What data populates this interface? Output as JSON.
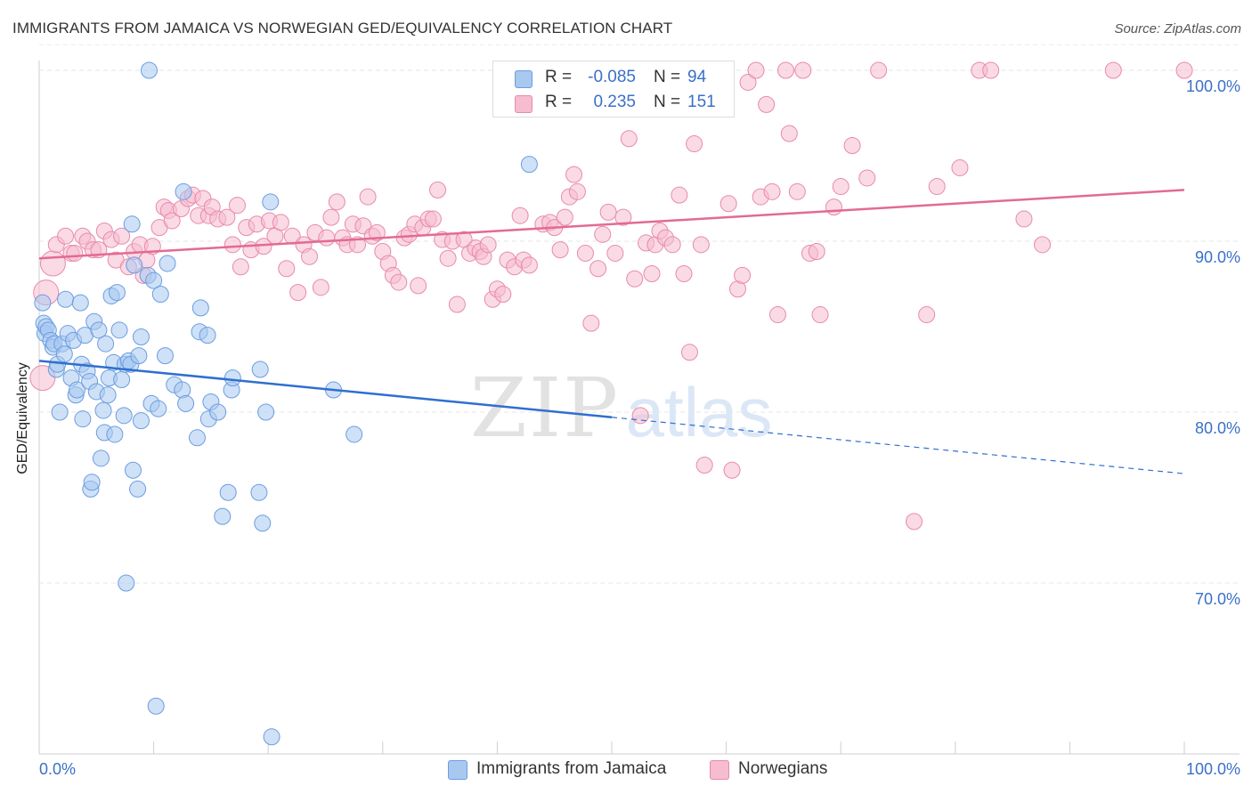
{
  "header": {
    "title": "IMMIGRANTS FROM JAMAICA VS NORWEGIAN GED/EQUIVALENCY CORRELATION CHART",
    "source": "Source: ZipAtlas.com"
  },
  "legend": {
    "rows": [
      {
        "r_label": "R =",
        "r_value": "-0.085",
        "n_label": "N =",
        "n_value": "94"
      },
      {
        "r_label": "R =",
        "r_value": "0.235",
        "n_label": "N =",
        "n_value": "151"
      }
    ],
    "bottom": [
      {
        "label": "Immigrants from Jamaica"
      },
      {
        "label": "Norwegians"
      }
    ]
  },
  "watermark": {
    "zip": "ZIP",
    "atlas": "atlas"
  },
  "chart_data": {
    "type": "scatter",
    "title": "IMMIGRANTS FROM JAMAICA VS NORWEGIAN GED/EQUIVALENCY CORRELATION CHART",
    "xlabel": "",
    "ylabel": "GED/Equivalency",
    "xlim": [
      0,
      100
    ],
    "ylim": [
      60,
      101.5
    ],
    "x_tick_labels": [
      "0.0%",
      "100.0%"
    ],
    "y_ticks": [
      70,
      80,
      90,
      100
    ],
    "y_tick_labels": [
      "70.0%",
      "80.0%",
      "90.0%",
      "100.0%"
    ],
    "grid": true,
    "legend_position": "top-center",
    "colors": {
      "jamaica_fill": "#a8c8f0",
      "jamaica_stroke": "#6b9de0",
      "jamaica_line": "#2f6fcf",
      "norwegian_fill": "#f6bcd0",
      "norwegian_stroke": "#e88aac",
      "norwegian_line": "#e36a95",
      "tick": "#3a70c8"
    },
    "series": [
      {
        "name": "Immigrants from Jamaica",
        "trend": {
          "x0": 0,
          "y0": 83.0,
          "x1": 50,
          "y1": 79.7,
          "dash_x1": 100,
          "dash_y1": 76.4
        },
        "points": [
          [
            0.3,
            86.4
          ],
          [
            0.4,
            85.2
          ],
          [
            0.5,
            84.6
          ],
          [
            0.6,
            85.0
          ],
          [
            0.8,
            84.8
          ],
          [
            1.0,
            84.2
          ],
          [
            1.2,
            83.8
          ],
          [
            1.3,
            84.0
          ],
          [
            1.5,
            82.5
          ],
          [
            1.6,
            82.8
          ],
          [
            1.8,
            80.0
          ],
          [
            2.0,
            84.0
          ],
          [
            2.2,
            83.4
          ],
          [
            2.3,
            86.6
          ],
          [
            2.5,
            84.6
          ],
          [
            2.8,
            82.0
          ],
          [
            3.0,
            84.2
          ],
          [
            3.2,
            81.0
          ],
          [
            3.3,
            81.3
          ],
          [
            3.6,
            86.4
          ],
          [
            3.7,
            82.8
          ],
          [
            3.8,
            79.6
          ],
          [
            4.0,
            84.5
          ],
          [
            4.2,
            82.4
          ],
          [
            4.4,
            81.8
          ],
          [
            4.5,
            75.5
          ],
          [
            4.6,
            75.9
          ],
          [
            4.8,
            85.3
          ],
          [
            5.0,
            81.2
          ],
          [
            5.2,
            84.8
          ],
          [
            5.4,
            77.3
          ],
          [
            5.6,
            80.1
          ],
          [
            5.7,
            78.8
          ],
          [
            5.8,
            84.0
          ],
          [
            6.0,
            81.0
          ],
          [
            6.1,
            82.0
          ],
          [
            6.3,
            86.8
          ],
          [
            6.5,
            82.9
          ],
          [
            6.6,
            78.7
          ],
          [
            6.8,
            87.0
          ],
          [
            7.0,
            84.8
          ],
          [
            7.2,
            81.9
          ],
          [
            7.4,
            79.8
          ],
          [
            7.5,
            82.8
          ],
          [
            7.6,
            70.0
          ],
          [
            7.8,
            83.0
          ],
          [
            8.0,
            82.8
          ],
          [
            8.1,
            91.0
          ],
          [
            8.2,
            76.6
          ],
          [
            8.3,
            88.6
          ],
          [
            8.6,
            75.5
          ],
          [
            8.7,
            83.3
          ],
          [
            8.9,
            79.5
          ],
          [
            8.9,
            84.4
          ],
          [
            9.5,
            88.0
          ],
          [
            9.6,
            100.0
          ],
          [
            9.8,
            80.5
          ],
          [
            10.0,
            87.7
          ],
          [
            10.2,
            62.8
          ],
          [
            10.4,
            80.2
          ],
          [
            10.6,
            86.9
          ],
          [
            11.0,
            83.3
          ],
          [
            11.2,
            88.7
          ],
          [
            11.8,
            81.6
          ],
          [
            12.5,
            81.3
          ],
          [
            12.6,
            92.9
          ],
          [
            12.8,
            80.5
          ],
          [
            13.8,
            78.5
          ],
          [
            14.0,
            84.7
          ],
          [
            14.1,
            86.1
          ],
          [
            14.7,
            84.5
          ],
          [
            14.8,
            79.6
          ],
          [
            15.0,
            80.6
          ],
          [
            15.6,
            80.0
          ],
          [
            16.0,
            73.9
          ],
          [
            16.5,
            75.3
          ],
          [
            16.8,
            81.3
          ],
          [
            16.9,
            82.0
          ],
          [
            19.2,
            75.3
          ],
          [
            19.3,
            82.5
          ],
          [
            19.5,
            73.5
          ],
          [
            19.8,
            80.0
          ],
          [
            20.2,
            92.3
          ],
          [
            20.3,
            61.0
          ],
          [
            25.7,
            81.3
          ],
          [
            27.5,
            78.7
          ],
          [
            42.8,
            94.5
          ]
        ]
      },
      {
        "name": "Norwegians",
        "trend": {
          "x0": 0,
          "y0": 89.0,
          "x1": 100,
          "y1": 93.0
        },
        "points": [
          [
            0.3,
            82.0
          ],
          [
            0.6,
            87.0
          ],
          [
            1.2,
            88.7
          ],
          [
            1.5,
            89.8
          ],
          [
            2.3,
            90.3
          ],
          [
            2.8,
            89.3
          ],
          [
            3.1,
            89.3
          ],
          [
            3.8,
            90.3
          ],
          [
            4.2,
            90.0
          ],
          [
            4.7,
            89.5
          ],
          [
            5.2,
            89.5
          ],
          [
            5.7,
            90.6
          ],
          [
            6.3,
            90.1
          ],
          [
            6.7,
            88.9
          ],
          [
            7.2,
            90.3
          ],
          [
            7.8,
            88.5
          ],
          [
            8.3,
            89.4
          ],
          [
            8.8,
            89.8
          ],
          [
            9.1,
            88.0
          ],
          [
            9.4,
            88.9
          ],
          [
            9.9,
            89.7
          ],
          [
            10.5,
            90.8
          ],
          [
            10.9,
            92.0
          ],
          [
            11.3,
            91.8
          ],
          [
            11.6,
            91.2
          ],
          [
            12.4,
            91.9
          ],
          [
            13.0,
            92.5
          ],
          [
            13.4,
            92.7
          ],
          [
            13.9,
            91.5
          ],
          [
            14.3,
            92.5
          ],
          [
            14.8,
            91.5
          ],
          [
            15.1,
            92.0
          ],
          [
            15.6,
            91.3
          ],
          [
            16.4,
            91.4
          ],
          [
            16.9,
            89.8
          ],
          [
            17.3,
            92.1
          ],
          [
            17.6,
            88.5
          ],
          [
            18.1,
            90.8
          ],
          [
            18.5,
            89.5
          ],
          [
            19.0,
            91.0
          ],
          [
            19.6,
            89.7
          ],
          [
            20.1,
            91.2
          ],
          [
            20.6,
            90.3
          ],
          [
            21.1,
            91.1
          ],
          [
            21.6,
            88.4
          ],
          [
            22.1,
            90.3
          ],
          [
            22.6,
            87.0
          ],
          [
            23.1,
            89.8
          ],
          [
            23.6,
            89.1
          ],
          [
            24.1,
            90.5
          ],
          [
            24.6,
            87.3
          ],
          [
            25.1,
            90.2
          ],
          [
            25.5,
            91.4
          ],
          [
            26.0,
            92.3
          ],
          [
            26.5,
            90.2
          ],
          [
            26.9,
            89.8
          ],
          [
            27.4,
            91.0
          ],
          [
            27.8,
            89.8
          ],
          [
            28.3,
            90.9
          ],
          [
            28.7,
            92.6
          ],
          [
            29.1,
            90.3
          ],
          [
            29.5,
            90.5
          ],
          [
            30.0,
            89.4
          ],
          [
            30.5,
            88.7
          ],
          [
            30.9,
            88.0
          ],
          [
            31.4,
            87.6
          ],
          [
            31.9,
            90.2
          ],
          [
            32.3,
            90.4
          ],
          [
            32.8,
            91.0
          ],
          [
            33.1,
            87.4
          ],
          [
            33.5,
            90.8
          ],
          [
            34.0,
            91.3
          ],
          [
            34.4,
            91.3
          ],
          [
            34.8,
            93.0
          ],
          [
            35.2,
            90.1
          ],
          [
            35.7,
            89.0
          ],
          [
            36.1,
            90.0
          ],
          [
            36.5,
            86.3
          ],
          [
            37.1,
            90.1
          ],
          [
            37.6,
            89.3
          ],
          [
            38.1,
            89.6
          ],
          [
            38.5,
            89.4
          ],
          [
            38.8,
            89.1
          ],
          [
            39.2,
            89.8
          ],
          [
            39.6,
            86.6
          ],
          [
            40.0,
            87.2
          ],
          [
            40.5,
            86.9
          ],
          [
            40.9,
            88.9
          ],
          [
            41.5,
            88.5
          ],
          [
            42.0,
            91.5
          ],
          [
            42.3,
            88.9
          ],
          [
            42.8,
            88.6
          ],
          [
            44.0,
            91.0
          ],
          [
            44.6,
            91.1
          ],
          [
            45.0,
            90.8
          ],
          [
            45.5,
            89.5
          ],
          [
            45.9,
            91.4
          ],
          [
            46.3,
            92.6
          ],
          [
            46.7,
            93.9
          ],
          [
            47.0,
            92.9
          ],
          [
            47.7,
            89.3
          ],
          [
            48.2,
            85.2
          ],
          [
            48.8,
            88.4
          ],
          [
            49.2,
            90.4
          ],
          [
            49.7,
            91.7
          ],
          [
            50.3,
            89.3
          ],
          [
            51.0,
            91.4
          ],
          [
            51.5,
            96.0
          ],
          [
            52.0,
            87.8
          ],
          [
            52.5,
            79.8
          ],
          [
            53.0,
            89.9
          ],
          [
            53.5,
            88.1
          ],
          [
            53.8,
            89.8
          ],
          [
            54.2,
            90.6
          ],
          [
            54.7,
            90.2
          ],
          [
            55.3,
            89.8
          ],
          [
            55.9,
            92.7
          ],
          [
            56.3,
            88.1
          ],
          [
            56.8,
            83.5
          ],
          [
            57.2,
            95.7
          ],
          [
            57.8,
            89.8
          ],
          [
            58.1,
            76.9
          ],
          [
            59.1,
            100.0
          ],
          [
            60.2,
            92.2
          ],
          [
            60.5,
            76.6
          ],
          [
            61.0,
            87.2
          ],
          [
            61.4,
            88.0
          ],
          [
            61.9,
            99.3
          ],
          [
            62.6,
            100.0
          ],
          [
            63.0,
            92.6
          ],
          [
            63.5,
            98.0
          ],
          [
            64.0,
            92.9
          ],
          [
            64.5,
            85.7
          ],
          [
            65.2,
            100.0
          ],
          [
            65.5,
            96.3
          ],
          [
            66.2,
            92.9
          ],
          [
            66.7,
            100.0
          ],
          [
            67.3,
            89.3
          ],
          [
            67.9,
            89.4
          ],
          [
            68.2,
            85.7
          ],
          [
            69.4,
            92.0
          ],
          [
            70.0,
            93.2
          ],
          [
            71.0,
            95.6
          ],
          [
            72.3,
            93.7
          ],
          [
            73.3,
            100.0
          ],
          [
            76.4,
            73.6
          ],
          [
            77.5,
            85.7
          ],
          [
            78.4,
            93.2
          ],
          [
            80.4,
            94.3
          ],
          [
            82.1,
            100.0
          ],
          [
            83.1,
            100.0
          ],
          [
            86.0,
            91.3
          ],
          [
            87.6,
            89.8
          ],
          [
            93.8,
            100.0
          ],
          [
            100.0,
            100.0
          ]
        ]
      }
    ]
  }
}
